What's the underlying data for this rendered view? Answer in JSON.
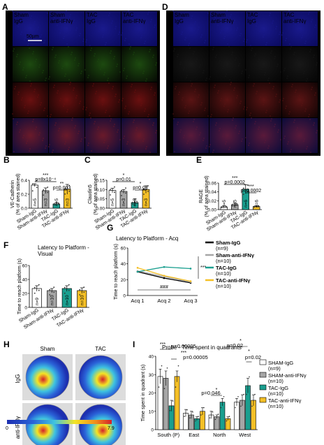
{
  "panel_letters": {
    "A": "A",
    "B": "B",
    "C": "C",
    "D": "D",
    "E": "E",
    "F": "F",
    "G": "G",
    "H": "H",
    "I": "I"
  },
  "micrographs": {
    "A": {
      "columns": [
        "Sham\nIgG",
        "Sham\nanti-IFNγ",
        "TAC\nIgG",
        "TAC\nanti-IFNγ"
      ],
      "rows": [
        "DAPI",
        "VE Cadherin",
        "Claudin5",
        "Merge"
      ],
      "scale_bar": "50µm"
    },
    "D": {
      "columns": [
        "Sham\nIgG",
        "Sham\nanti-IFNγ",
        "TAC\nIgG",
        "TAC\nanti-IFNγ"
      ],
      "rows": [
        "DAPI",
        "RAGE",
        "CD31",
        "Merge"
      ]
    }
  },
  "colors": {
    "sham_igg": "#ffffff",
    "sham_anti": "#a6a6a6",
    "tac_igg": "#1a9f8f",
    "tac_anti": "#f5c026",
    "black": "#000000"
  },
  "chart_data": [
    {
      "panel": "B",
      "type": "bar",
      "ylabel": "VE-Cadherin\n(% of area stained)",
      "ylim": [
        0,
        0.4
      ],
      "yticks": [
        "0.0",
        "0.2",
        "0.4"
      ],
      "categories": [
        "Sham-IgG",
        "Sham-anti-IFNγ",
        "TAC-IgG",
        "TAC-anti-IFNγ"
      ],
      "values": [
        0.33,
        0.25,
        0.06,
        0.27
      ],
      "errors": [
        0.02,
        0.04,
        0.02,
        0.07
      ],
      "n_labels": [
        "n=5",
        "n=3",
        "n=5",
        "n=3"
      ],
      "significance": [
        {
          "stars": "***",
          "p": "p=8x10⁻⁴",
          "from": 0,
          "to": 2
        },
        {
          "stars": "**",
          "p": "p=0.003",
          "from": 2,
          "to": 3
        }
      ]
    },
    {
      "panel": "C",
      "type": "bar",
      "ylabel": "Claudin5\n(% of area stained)",
      "ylim": [
        0,
        0.15
      ],
      "yticks": [
        "0.00",
        "0.05",
        "0.10",
        "0.15"
      ],
      "categories": [
        "Sham-IgG",
        "Sham-anti-IFNγ",
        "TAC-IgG",
        "TAC-anti-IFNγ"
      ],
      "values": [
        0.095,
        0.09,
        0.03,
        0.1
      ],
      "errors": [
        0.012,
        0.01,
        0.02,
        0.02
      ],
      "n_labels": [
        "n=5",
        "n=3",
        "n=5",
        "n=3"
      ],
      "significance": [
        {
          "stars": "*",
          "p": "p=0.01",
          "from": 0,
          "to": 2
        },
        {
          "stars": "*",
          "p": "p=0.03",
          "from": 2,
          "to": 3
        }
      ]
    },
    {
      "panel": "E",
      "type": "bar",
      "ylabel": "RAGE\n(% of area stained)",
      "ylim": [
        0,
        0.06
      ],
      "yticks": [
        "0.00",
        "0.02",
        "0.04",
        "0.06"
      ],
      "categories": [
        "Sham-IgG",
        "Sham-anti-IFNγ",
        "TAC-IgG",
        "TAC-anti-IFNγ"
      ],
      "values": [
        0.006,
        0.011,
        0.046,
        0.007
      ],
      "errors": [
        0.003,
        0.004,
        0.01,
        0.002
      ],
      "n_labels": [
        "n=5",
        "n=5",
        "n=6",
        "n=6"
      ],
      "significance": [
        {
          "stars": "***",
          "p": "p=0.0002",
          "from": 0,
          "to": 2
        },
        {
          "stars": "***",
          "p": "p=0.0002",
          "from": 2,
          "to": 3
        }
      ]
    },
    {
      "panel": "F",
      "type": "bar",
      "title": "Latency to Platform -\nVisual",
      "ylabel": "Time to reach platform (s)",
      "ylim": [
        0,
        60
      ],
      "yticks": [
        "0",
        "20",
        "40",
        "60"
      ],
      "categories": [
        "Sham-IgG",
        "Sham-anti-IFNγ",
        "TAC-IgG",
        "TAC-anti-IFNγ"
      ],
      "values": [
        27,
        24,
        27,
        24
      ],
      "errors": [
        4,
        3,
        4,
        4
      ],
      "n_labels": [
        "n=9",
        "n=10",
        "n=10",
        "n=10"
      ]
    },
    {
      "panel": "G",
      "type": "line",
      "title": "Latency to Platform - Acq",
      "ylabel": "Time to reach platform (s)",
      "ylim": [
        0,
        60
      ],
      "yticks": [
        "0",
        "20",
        "40",
        "60"
      ],
      "x": [
        "Acq 1",
        "Acq 2",
        "Acq 3"
      ],
      "series": [
        {
          "name": "Sham-IgG",
          "n": "(n=9)",
          "values": [
            30,
            22,
            16
          ]
        },
        {
          "name": "Sham-anti-IFNγ",
          "n": "(n=10)",
          "values": [
            31,
            24,
            17
          ]
        },
        {
          "name": "TAC-IgG",
          "n": "(n=10)",
          "values": [
            30,
            36,
            34
          ]
        },
        {
          "name": "TAC-anti-IFNγ",
          "n": "(n=10)",
          "values": [
            35,
            25,
            18
          ]
        }
      ],
      "annotations": [
        "***",
        "###"
      ]
    },
    {
      "panel": "H",
      "type": "heatmap",
      "columns": [
        "Sham",
        "TAC"
      ],
      "rows": [
        "IgG",
        "anti-IFNγ"
      ],
      "colorbar": [
        "0",
        "7.9"
      ]
    },
    {
      "panel": "I",
      "type": "bar",
      "title": "Probe - Time spent in quadrants",
      "ylabel": "Time spent in quadrant (s)",
      "ylim": [
        0,
        40
      ],
      "yticks": [
        "0",
        "10",
        "20",
        "30",
        "40"
      ],
      "categories": [
        "South (P)",
        "East",
        "North",
        "West"
      ],
      "series": [
        {
          "name": "SHAM-IgG",
          "n": "(n=9)",
          "values": [
            29,
            9,
            8,
            15
          ],
          "errors": [
            4,
            2,
            2,
            2
          ]
        },
        {
          "name": "SHAM-anti-IFNγ",
          "n": "(n=10)",
          "values": [
            28,
            8,
            7,
            16
          ],
          "errors": [
            4,
            2,
            1,
            3
          ]
        },
        {
          "name": "TAC-IgG",
          "n": "(n=10)",
          "values": [
            13,
            6,
            15,
            24
          ],
          "errors": [
            3,
            1,
            2,
            4
          ]
        },
        {
          "name": "TAC-anti-IFNγ",
          "n": "(n=10)",
          "values": [
            29,
            10,
            6,
            16
          ],
          "errors": [
            3,
            2,
            1,
            3
          ]
        }
      ],
      "significance": [
        {
          "stars": "***",
          "p": "p=0.00005"
        },
        {
          "stars": "***",
          "p": "p=0.00005"
        },
        {
          "stars": "*",
          "p": "p=0.046"
        },
        {
          "stars": "*",
          "p": "p=0.02"
        },
        {
          "stars": "*",
          "p": "p=0.02"
        }
      ]
    }
  ]
}
